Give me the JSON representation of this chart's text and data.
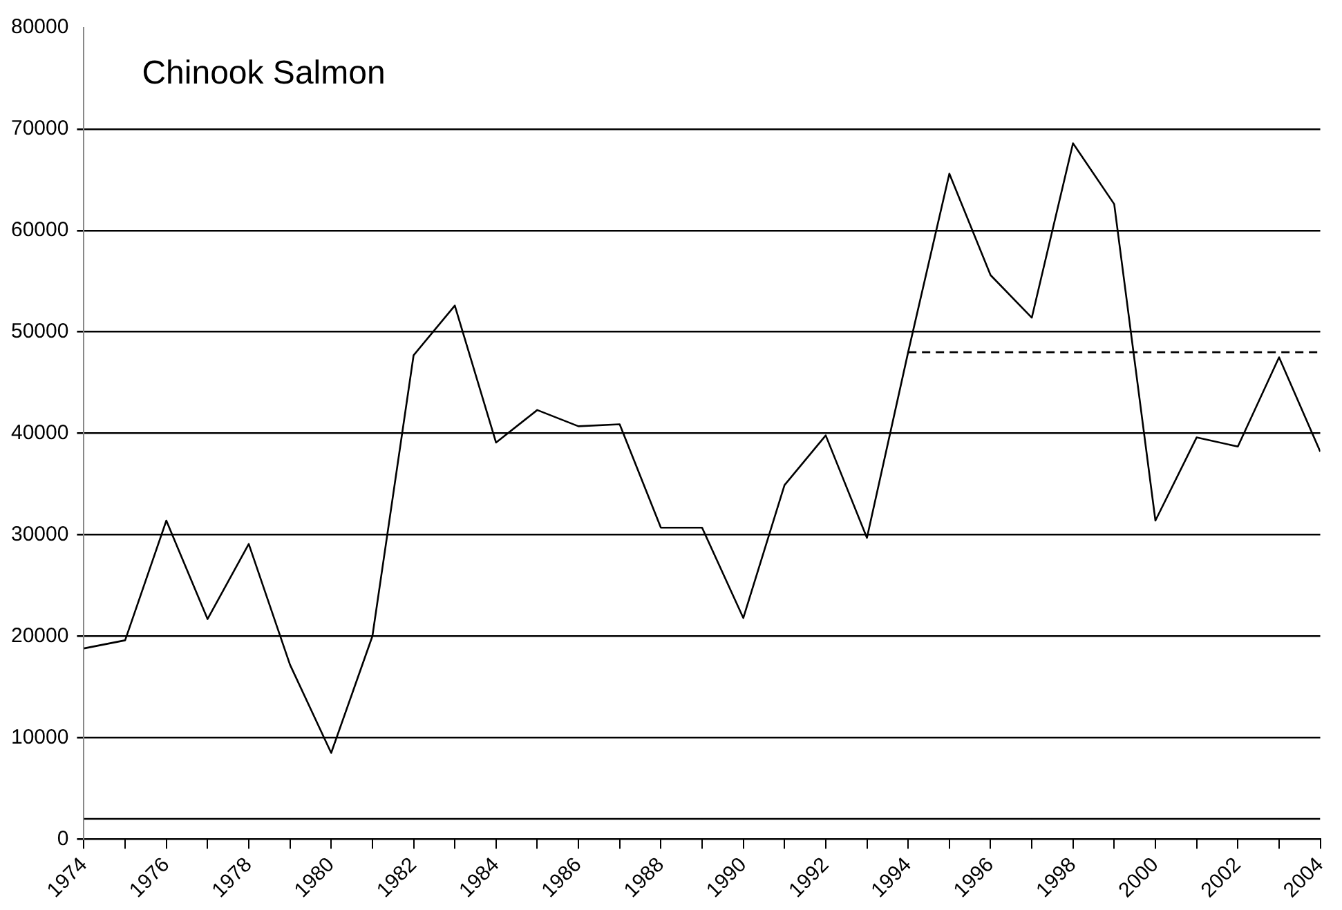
{
  "chart_data": {
    "type": "line",
    "title": "Chinook Salmon",
    "x": [
      1974,
      1975,
      1976,
      1977,
      1978,
      1979,
      1980,
      1981,
      1982,
      1983,
      1984,
      1985,
      1986,
      1987,
      1988,
      1989,
      1990,
      1991,
      1992,
      1993,
      1994,
      1995,
      1996,
      1997,
      1998,
      1999,
      2000,
      2001,
      2002,
      2003,
      2004
    ],
    "series": [
      {
        "color": "#000000",
        "values": [
          18800,
          19600,
          31400,
          21700,
          29100,
          17200,
          8500,
          20000,
          47700,
          52600,
          39100,
          42300,
          40700,
          40900,
          30700,
          30700,
          21800,
          34900,
          39800,
          29700,
          48000,
          65600,
          55600,
          51400,
          68600,
          62600,
          31400,
          39600,
          38700,
          47500,
          38200
        ]
      },
      {
        "type": "line",
        "color": "#000000",
        "line_style": "dashed",
        "x": [
          1994,
          2004
        ],
        "values": [
          48000,
          48000
        ]
      },
      {
        "type": "line",
        "color": "#000000",
        "line_style": "solid",
        "x": [
          1974,
          2004
        ],
        "values": [
          2000,
          2000
        ]
      }
    ],
    "xlim": [
      1974,
      2004
    ],
    "xticks": [
      1974,
      {
        "value": 1975,
        "label": null
      },
      1976,
      {
        "value": 1977,
        "label": null
      },
      1978,
      {
        "value": 1979,
        "label": null
      },
      1980,
      {
        "value": 1981,
        "label": null
      },
      1982,
      {
        "value": 1983,
        "label": null
      },
      1984,
      {
        "value": 1985,
        "label": null
      },
      1986,
      {
        "value": 1987,
        "label": null
      },
      1988,
      {
        "value": 1989,
        "label": null
      },
      1990,
      {
        "value": 1991,
        "label": null
      },
      1992,
      {
        "value": 1993,
        "label": null
      },
      1994,
      {
        "value": 1995,
        "label": null
      },
      1996,
      {
        "value": 1997,
        "label": null
      },
      1998,
      {
        "value": 1999,
        "label": null
      },
      2000,
      {
        "value": 2001,
        "label": null
      },
      2002,
      {
        "value": 2003,
        "label": null
      },
      2004
    ],
    "ylim": [
      0,
      80000
    ],
    "yticks": [
      0,
      10000,
      20000,
      30000,
      40000,
      50000,
      60000,
      70000,
      80000
    ],
    "grid": "y",
    "legend": false,
    "marker": "none",
    "line_style": "solid"
  }
}
